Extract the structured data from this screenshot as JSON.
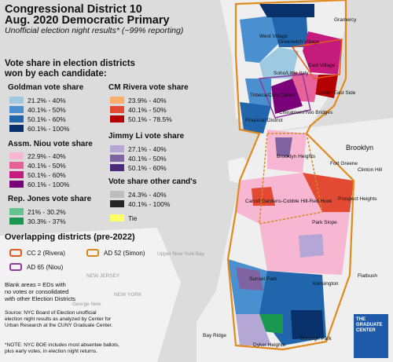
{
  "title": {
    "line1": "Congressional District 10",
    "line2": "Aug. 2020 Democratic Primary",
    "subtitle": "Unofficial election night results* (~99% reporting)"
  },
  "legend": {
    "heading_line1": "Vote share in election districts",
    "heading_line2": "won by each candidate:",
    "goldman": {
      "title": "Goldman vote share",
      "items": [
        "21.2% - 40%",
        "40.1% - 50%",
        "50.1% - 60%",
        "60.1% - 100%"
      ],
      "colors": [
        "#9ecae1",
        "#4a90d0",
        "#2166ac",
        "#08306b"
      ]
    },
    "niou": {
      "title": "Assm. Niou vote share",
      "items": [
        "22.9% - 40%",
        "40.1% - 50%",
        "50.1% - 60%",
        "60.1% - 100%"
      ],
      "colors": [
        "#f7b6d2",
        "#e8629a",
        "#c51b7d",
        "#7a0177"
      ]
    },
    "jones": {
      "title": "Rep. Jones vote share",
      "items": [
        "21% - 30.2%",
        "30.3% - 37%"
      ],
      "colors": [
        "#66c28f",
        "#1a9850"
      ]
    },
    "rivera": {
      "title": "CM Rivera vote share",
      "items": [
        "23.9% - 40%",
        "40.1% - 50%",
        "50.1% - 78.5%"
      ],
      "colors": [
        "#fdae6b",
        "#e34a33",
        "#b30000"
      ]
    },
    "li": {
      "title": "Jimmy Li vote share",
      "items": [
        "27.1% - 40%",
        "40.1% - 50%",
        "50.1% - 60%"
      ],
      "colors": [
        "#b4a7d6",
        "#8064a2",
        "#4d2a7a"
      ]
    },
    "other": {
      "title": "Vote share other cand's",
      "items": [
        "24.3% - 40%",
        "40.1% - 100%"
      ],
      "colors": [
        "#bdbdbd",
        "#252525"
      ]
    },
    "tie": {
      "label": "Tie",
      "color": "#ffff66"
    }
  },
  "overlap": {
    "title": "Overlapping districts (pre-2022)",
    "cc2": "CC 2 (Rivera)",
    "ad52": "AD 52 (Simon)",
    "ad65": "AD 65 (Niou)",
    "colors": {
      "cc2": "#e35a1c",
      "ad52": "#d28a1a",
      "ad65": "#8e3b9e"
    }
  },
  "blank_note": {
    "line1": "Blank areas = EDs with",
    "line2": "no votes or consolidated",
    "line3": "with other Election Districts"
  },
  "source": {
    "line1": "Source: NYC Board of Election unofficial",
    "line2": "election night results as analyzed by Center for",
    "line3": "Urban Research at the CUNY Graduate Center."
  },
  "footnote": {
    "line1": "*NOTE: NYC BOE includes most absentee ballots,",
    "line2": "plus early votes, in election night returns."
  },
  "logo": {
    "line1": "THE",
    "line2": "GRADUATE",
    "line3": "CENTER"
  },
  "places": {
    "gramercy": "Gramercy",
    "west_village": "West Village",
    "greenwich_village": "Greenwich Village",
    "soho": "Soho/Little Italy",
    "east_village": "East Village",
    "lower_east_side": "Lower East Side",
    "tribeca": "Tribeca/Civic Center",
    "chinatown": "Chinatown/Two Bridges",
    "financial": "Financial District",
    "brooklyn_heights": "Brooklyn Heights",
    "brooklyn": "Brooklyn",
    "fort_greene": "Fort Greene",
    "clinton_hill": "Clinton Hill",
    "carroll": "Carroll Gardens-Cobble Hill-Red Hook",
    "prospect": "Prospect Heights",
    "park_slope": "Park Slope",
    "sunset": "Sunset Park",
    "kensington": "Kensington",
    "flatbush": "Flatbush",
    "borough_park": "Borough Park",
    "bay_ridge": "Bay Ridge",
    "dyker": "Dyker Heights",
    "upper_ny_bay": "Upper New York Bay",
    "new_jersey": "NEW JERSEY",
    "new_york": "NEW YORK",
    "george": "George New"
  }
}
